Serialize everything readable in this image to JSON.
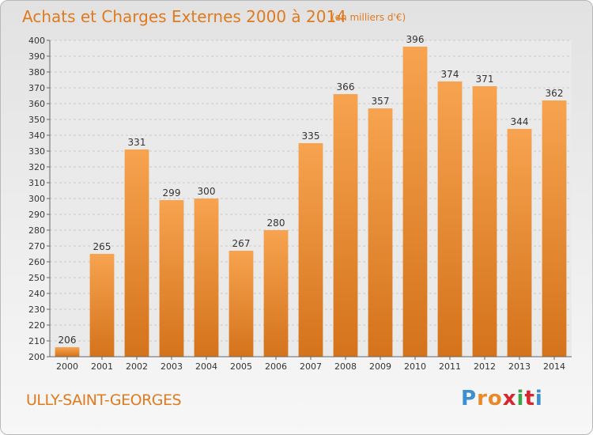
{
  "title": "Achats et Charges Externes 2000 à 2014",
  "subtitle": "(en milliers d'€)",
  "commune": "ULLY-SAINT-GEORGES",
  "logo": {
    "letters": [
      "P",
      "r",
      "o",
      "x",
      "i",
      "t",
      "i"
    ],
    "colors": [
      "#3c8fd0",
      "#e98a2a",
      "#e98a2a",
      "#d6262f",
      "#3ca34a",
      "#d6262f",
      "#3c8fd0"
    ]
  },
  "chart_data": {
    "type": "bar",
    "categories": [
      "2000",
      "2001",
      "2002",
      "2003",
      "2004",
      "2005",
      "2006",
      "2007",
      "2008",
      "2009",
      "2010",
      "2011",
      "2012",
      "2013",
      "2014"
    ],
    "values": [
      206,
      265,
      331,
      299,
      300,
      267,
      280,
      335,
      366,
      357,
      396,
      374,
      371,
      344,
      362
    ],
    "ylim": [
      200,
      400
    ],
    "yticks": [
      200,
      210,
      220,
      230,
      240,
      250,
      260,
      270,
      280,
      290,
      300,
      310,
      320,
      330,
      340,
      350,
      360,
      370,
      380,
      390,
      400
    ],
    "grid": true,
    "bar_color": "#f08a2e"
  }
}
